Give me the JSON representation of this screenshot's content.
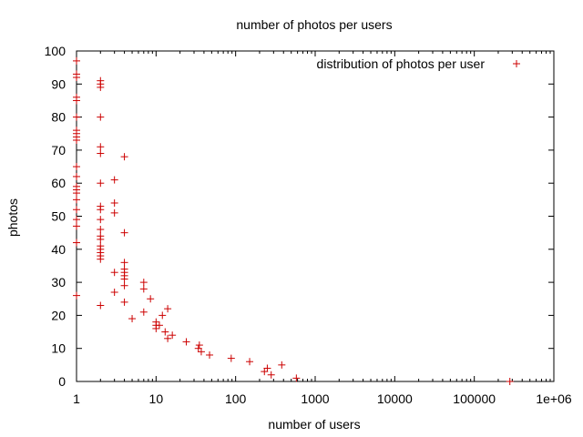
{
  "chart_data": {
    "type": "scatter",
    "title": "number of photos per users",
    "xlabel": "number of users",
    "ylabel": "photos",
    "xscale": "log",
    "xlim": [
      1,
      1000000
    ],
    "ylim": [
      0,
      100
    ],
    "x_ticks": [
      1,
      10,
      100,
      1000,
      10000,
      100000,
      1000000
    ],
    "x_tick_labels": [
      "1",
      "10",
      "100",
      "1000",
      "10000",
      "100000",
      "1e+06"
    ],
    "y_ticks": [
      0,
      10,
      20,
      30,
      40,
      50,
      60,
      70,
      80,
      90,
      100
    ],
    "y_tick_labels": [
      "0",
      "10",
      "20",
      "30",
      "40",
      "50",
      "60",
      "70",
      "80",
      "90",
      "100"
    ],
    "grid": false,
    "legend_position": "top-right",
    "point_color": "#cc0000",
    "series": [
      {
        "name": "distribution of photos per user",
        "points": [
          [
            1,
            26
          ],
          [
            1,
            42
          ],
          [
            1,
            47
          ],
          [
            1,
            49
          ],
          [
            1,
            52
          ],
          [
            1,
            55
          ],
          [
            1,
            57
          ],
          [
            1,
            58
          ],
          [
            1,
            59
          ],
          [
            1,
            62
          ],
          [
            1,
            65
          ],
          [
            1,
            73
          ],
          [
            1,
            74
          ],
          [
            1,
            75
          ],
          [
            1,
            76
          ],
          [
            1,
            80
          ],
          [
            1,
            85
          ],
          [
            1,
            86
          ],
          [
            1,
            92
          ],
          [
            1,
            93
          ],
          [
            1,
            97
          ],
          [
            2,
            23
          ],
          [
            2,
            37
          ],
          [
            2,
            38
          ],
          [
            2,
            39
          ],
          [
            2,
            40
          ],
          [
            2,
            41
          ],
          [
            2,
            43
          ],
          [
            2,
            44
          ],
          [
            2,
            46
          ],
          [
            2,
            49
          ],
          [
            2,
            52
          ],
          [
            2,
            53
          ],
          [
            2,
            60
          ],
          [
            2,
            69
          ],
          [
            2,
            71
          ],
          [
            2,
            80
          ],
          [
            2,
            89
          ],
          [
            2,
            90
          ],
          [
            2,
            91
          ],
          [
            3,
            27
          ],
          [
            3,
            33
          ],
          [
            3,
            51
          ],
          [
            3,
            54
          ],
          [
            3,
            61
          ],
          [
            4,
            24
          ],
          [
            4,
            29
          ],
          [
            4,
            31
          ],
          [
            4,
            32
          ],
          [
            4,
            33
          ],
          [
            4,
            34
          ],
          [
            4,
            36
          ],
          [
            4,
            45
          ],
          [
            4,
            68
          ],
          [
            5,
            19
          ],
          [
            7,
            21
          ],
          [
            7,
            28
          ],
          [
            7,
            30
          ],
          [
            8.5,
            25
          ],
          [
            10,
            16
          ],
          [
            10,
            17
          ],
          [
            10,
            18
          ],
          [
            11,
            17
          ],
          [
            12,
            20
          ],
          [
            13,
            15
          ],
          [
            14,
            13
          ],
          [
            14,
            22
          ],
          [
            16,
            14
          ],
          [
            24,
            12
          ],
          [
            34,
            10
          ],
          [
            35,
            11
          ],
          [
            37,
            9
          ],
          [
            47,
            8
          ],
          [
            88,
            7
          ],
          [
            150,
            6
          ],
          [
            230,
            3
          ],
          [
            250,
            4
          ],
          [
            280,
            2
          ],
          [
            380,
            5
          ],
          [
            580,
            1
          ],
          [
            280000,
            0
          ]
        ]
      }
    ]
  }
}
